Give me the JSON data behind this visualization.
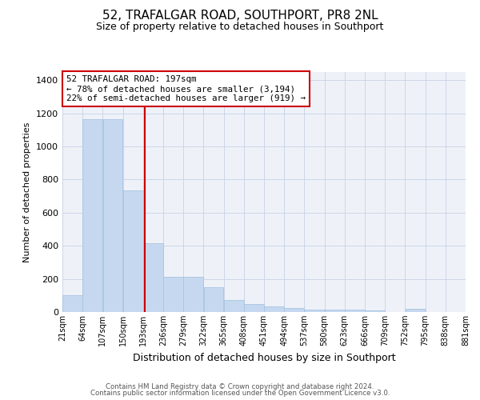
{
  "title": "52, TRAFALGAR ROAD, SOUTHPORT, PR8 2NL",
  "subtitle": "Size of property relative to detached houses in Southport",
  "xlabel": "Distribution of detached houses by size in Southport",
  "ylabel": "Number of detached properties",
  "footer_line1": "Contains HM Land Registry data © Crown copyright and database right 2024.",
  "footer_line2": "Contains public sector information licensed under the Open Government Licence v3.0.",
  "annotation_line1": "52 TRAFALGAR ROAD: 197sqm",
  "annotation_line2": "← 78% of detached houses are smaller (3,194)",
  "annotation_line3": "22% of semi-detached houses are larger (919) →",
  "property_size_sqm": 197,
  "bin_edges": [
    21,
    64,
    107,
    150,
    193,
    236,
    279,
    322,
    365,
    408,
    451,
    494,
    537,
    580,
    623,
    666,
    709,
    752,
    795,
    838,
    881
  ],
  "bar_heights": [
    100,
    1165,
    1165,
    735,
    415,
    215,
    215,
    150,
    72,
    50,
    35,
    25,
    15,
    15,
    13,
    10,
    0,
    20,
    0,
    0
  ],
  "bar_color": "#c5d8f0",
  "bar_edge_color": "#a8c4e0",
  "vline_color": "#cc0000",
  "vline_x": 197,
  "annotation_box_color": "#cc0000",
  "grid_color": "#ccd5e8",
  "background_color": "#eef2f8",
  "ylim": [
    0,
    1450
  ],
  "yticks": [
    0,
    200,
    400,
    600,
    800,
    1000,
    1200,
    1400
  ],
  "xtick_labels": [
    "21sqm",
    "64sqm",
    "107sqm",
    "150sqm",
    "193sqm",
    "236sqm",
    "279sqm",
    "322sqm",
    "365sqm",
    "408sqm",
    "451sqm",
    "494sqm",
    "537sqm",
    "580sqm",
    "623sqm",
    "666sqm",
    "709sqm",
    "752sqm",
    "795sqm",
    "838sqm",
    "881sqm"
  ],
  "title_fontsize": 11,
  "subtitle_fontsize": 9,
  "ylabel_fontsize": 8,
  "xlabel_fontsize": 9,
  "ytick_fontsize": 8,
  "xtick_fontsize": 7
}
